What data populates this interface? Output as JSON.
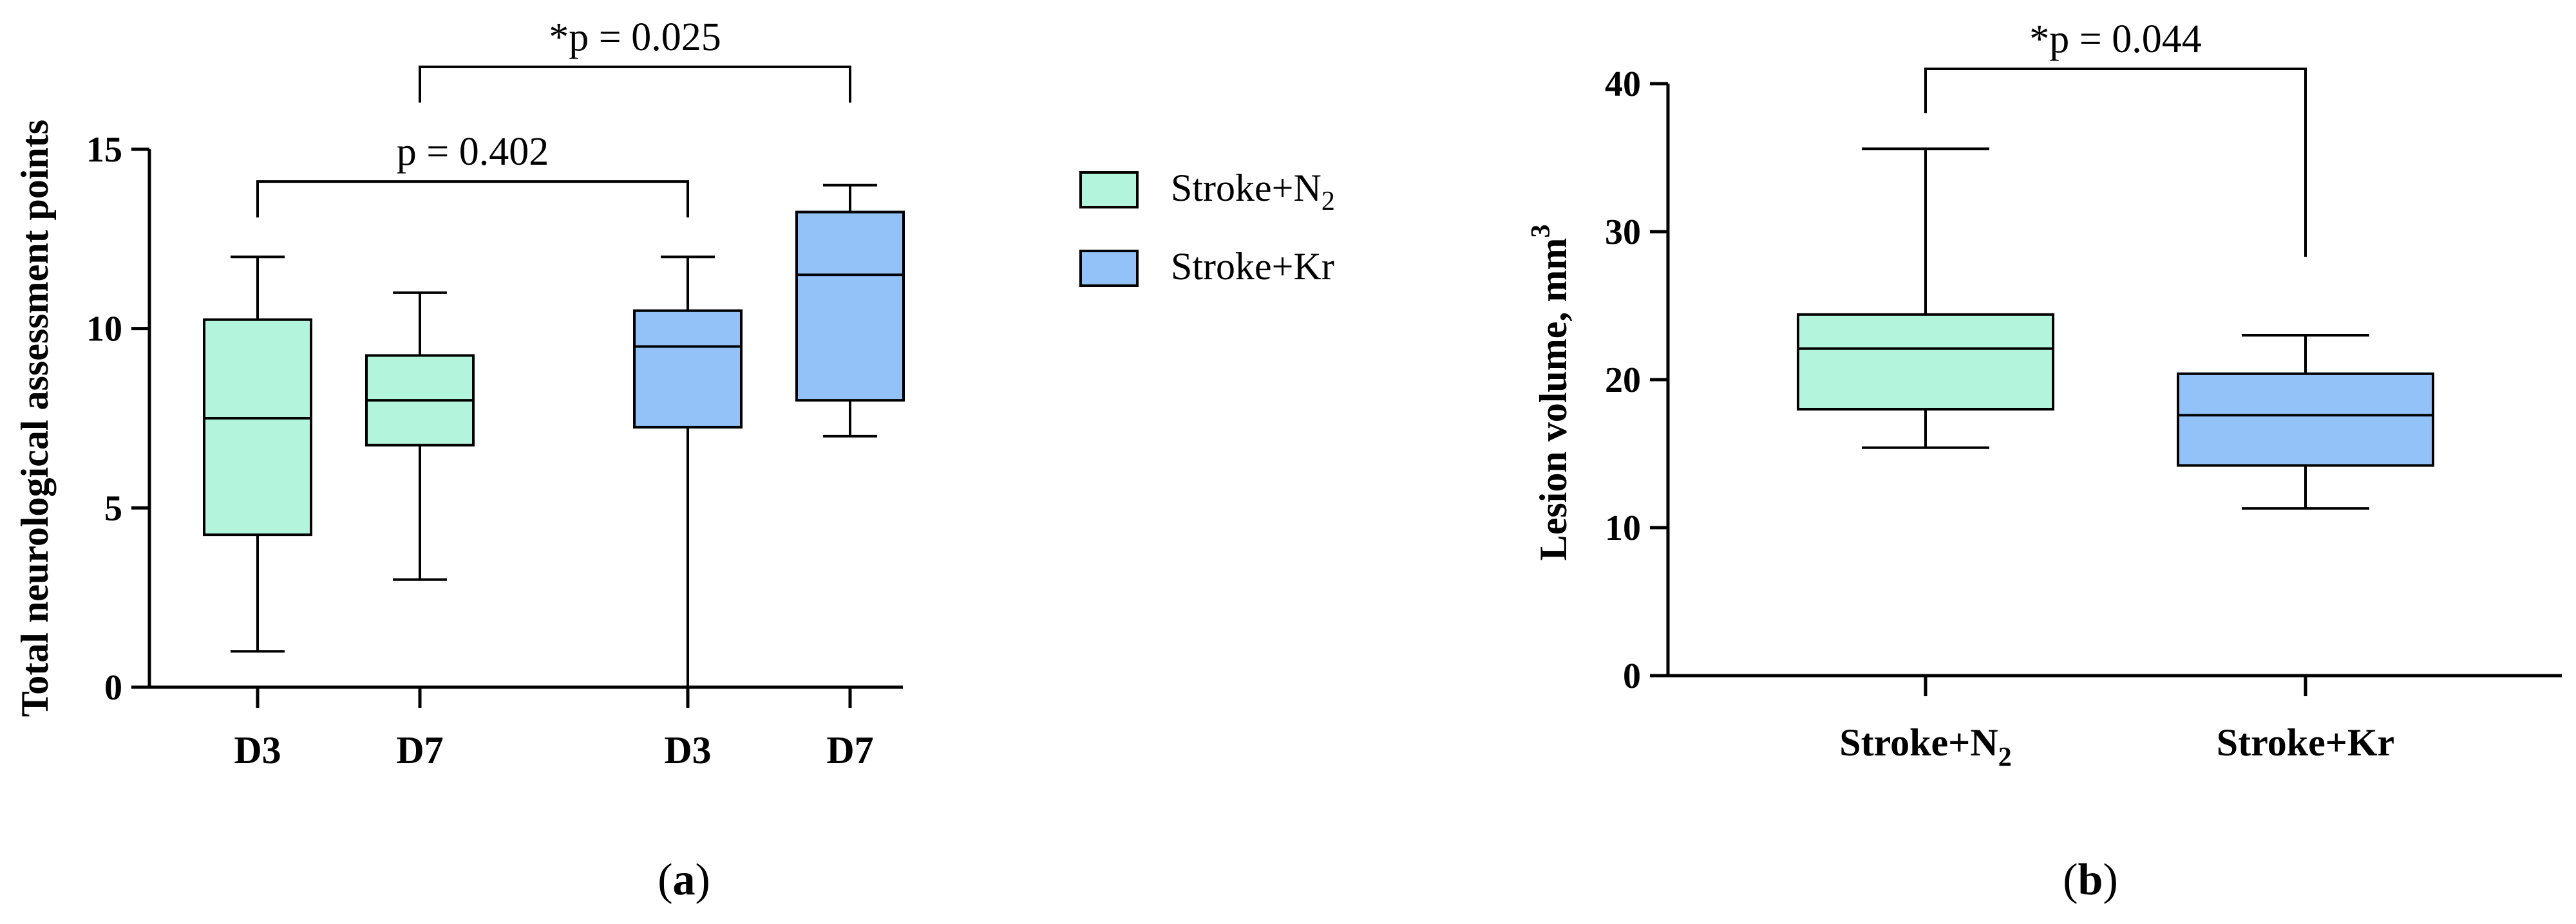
{
  "colors": {
    "n2_fill": "#b3f5dc",
    "kr_fill": "#93c2f8",
    "stroke": "#000000"
  },
  "chart_data": [
    {
      "panel": "a",
      "type": "box",
      "ylabel": "Total neurological assessment points",
      "ylim": [
        0,
        15
      ],
      "yticks": [
        0,
        5,
        10,
        15
      ],
      "categories": [
        "D3",
        "D7",
        "D3",
        "D7"
      ],
      "boxes": [
        {
          "group": "Stroke+N2",
          "category": "D3",
          "min": 1,
          "q1": 4.25,
          "median": 7.5,
          "q3": 10.25,
          "max": 12
        },
        {
          "group": "Stroke+N2",
          "category": "D7",
          "min": 3,
          "q1": 6.75,
          "median": 8,
          "q3": 9.25,
          "max": 11
        },
        {
          "group": "Stroke+Kr",
          "category": "D3",
          "min": 0,
          "q1": 7.25,
          "median": 9.5,
          "q3": 10.5,
          "max": 12
        },
        {
          "group": "Stroke+Kr",
          "category": "D7",
          "min": 7,
          "q1": 8,
          "median": 11.5,
          "q3": 13.25,
          "max": 14
        }
      ],
      "legend": [
        {
          "label": "Stroke+N",
          "sub": "2",
          "color_key": "n2_fill"
        },
        {
          "label": "Stroke+Kr",
          "sub": "",
          "color_key": "kr_fill"
        }
      ],
      "annotations": [
        {
          "text": "p = 0.402",
          "from": 0,
          "to": 2,
          "level": 14.1
        },
        {
          "text": "*p = 0.025",
          "from": 1,
          "to": 3,
          "level": 17.3
        }
      ],
      "panel_label": "a"
    },
    {
      "panel": "b",
      "type": "box",
      "ylabel": "Lesion volume, mm",
      "ylabel_sup": "3",
      "ylim": [
        0,
        40
      ],
      "yticks": [
        0,
        10,
        20,
        30,
        40
      ],
      "categories": [
        "Stroke+N",
        "Stroke+Kr"
      ],
      "category_subs": [
        "2",
        ""
      ],
      "boxes": [
        {
          "group": "Stroke+N2",
          "category": "Stroke+N2",
          "min": 15.4,
          "q1": 18,
          "median": 22.1,
          "q3": 24.4,
          "max": 35.6
        },
        {
          "group": "Stroke+Kr",
          "category": "Stroke+Kr",
          "min": 11.3,
          "q1": 14.2,
          "median": 17.6,
          "q3": 20.4,
          "max": 23
        }
      ],
      "annotations": [
        {
          "text": "*p = 0.044",
          "from": 0,
          "to": 1,
          "level": 41,
          "drop_left": 38,
          "drop_right": 28.3
        }
      ],
      "panel_label": "b"
    }
  ]
}
